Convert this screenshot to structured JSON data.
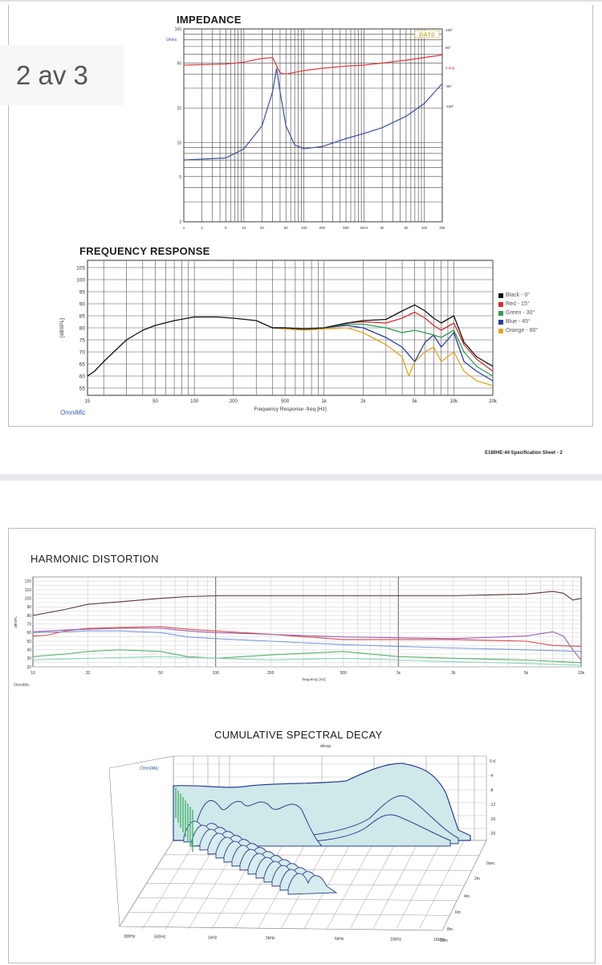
{
  "pager": {
    "label": "2 av 3"
  },
  "footer": {
    "spec": "E180HE-44 Specification Sheet - 2"
  },
  "impedance": {
    "title": "IMPEDANCE",
    "y_unit": "Ohms",
    "y_ticks": [
      "100",
      "50",
      "20",
      "10",
      "5",
      "2"
    ],
    "phase_ticks": [
      "180°",
      "90°",
      "0 deg",
      "-90°",
      "-180°"
    ],
    "x_ticks": [
      "1",
      "2",
      "5",
      "10",
      "20",
      "50",
      "100",
      "200",
      "500",
      "1kHz",
      "2k",
      "5k",
      "10k",
      "20k"
    ],
    "logo": "DATS"
  },
  "freq_response": {
    "title": "FREQUENCY RESPONSE",
    "ylabel": "[dBSPL]",
    "xlabel": "Frequency Response -freq [Hz]",
    "y_ticks": [
      "105",
      "100",
      "95",
      "90",
      "85",
      "80",
      "75",
      "70",
      "65",
      "60",
      "55"
    ],
    "x_ticks": [
      "15",
      "50",
      "100",
      "200",
      "500",
      "1k",
      "2k",
      "5k",
      "10k",
      "20k"
    ],
    "brand": "OmniMic",
    "legend": [
      {
        "label": "Black - 0°",
        "color": "#111111"
      },
      {
        "label": "Red - 15°",
        "color": "#d32f2f"
      },
      {
        "label": "Green - 30°",
        "color": "#2e9d4f"
      },
      {
        "label": "Blue - 45°",
        "color": "#283f9a"
      },
      {
        "label": "Orange - 60°",
        "color": "#e6a51e"
      }
    ]
  },
  "harmonic": {
    "title": "HARMONIC DISTORTION",
    "ylabel": "dBSPL",
    "xlabel": "frequency [Hz]",
    "y_ticks": [
      "120",
      "110",
      "100",
      "90",
      "80",
      "70",
      "60",
      "50",
      "40",
      "30",
      "20"
    ],
    "x_ticks": [
      "10",
      "20",
      "50",
      "100",
      "200",
      "500",
      "1k",
      "2k",
      "5k",
      "10k"
    ],
    "brand": "OmniMic"
  },
  "csd": {
    "title": "CUMULATIVE SPECTRAL DECAY",
    "subtitle": "decay",
    "brand": "OmniMic",
    "z_ticks": [
      "0 d",
      "-4",
      "-8",
      "-12",
      "-16",
      "-20"
    ],
    "t_ticks": [
      "0sec",
      "2m",
      "4m",
      "6m",
      "8m",
      "10m"
    ],
    "x_ticks": [
      "300Hz",
      "500Hz",
      "1kHz",
      "2kHz",
      "5kHz",
      "10kHz",
      "15kHz"
    ]
  },
  "chart_data": [
    {
      "type": "line",
      "title": "IMPEDANCE",
      "ylabel": "Ohms",
      "yscale": "log",
      "xscale": "log",
      "ylim": [
        2,
        100
      ],
      "xlim": [
        1,
        20000
      ],
      "series": [
        {
          "color": "#3a4fa6",
          "x": [
            1,
            5,
            10,
            20,
            30,
            35,
            40,
            50,
            70,
            100,
            200,
            500,
            1000,
            2000,
            5000,
            10000,
            20000
          ],
          "y": [
            7,
            7.3,
            8.8,
            14,
            28,
            45,
            28,
            14,
            9.5,
            8.8,
            9.2,
            10.8,
            12,
            13.5,
            17,
            22,
            33
          ]
        },
        {
          "color": "#d93a3a",
          "x": [
            1,
            5,
            10,
            20,
            30,
            40,
            50,
            100,
            200,
            500,
            1000,
            2000,
            5000,
            10000,
            20000
          ],
          "y": [
            48,
            49,
            51,
            55,
            56,
            41,
            40,
            43,
            45,
            47,
            48,
            50,
            53,
            56,
            59
          ]
        }
      ]
    },
    {
      "type": "line",
      "title": "FREQUENCY RESPONSE",
      "xlabel": "Frequency Response -freq [Hz]",
      "ylabel": "[dBSPL]",
      "xscale": "log",
      "xlim": [
        15,
        20000
      ],
      "ylim": [
        52,
        108
      ],
      "series": [
        {
          "name": "Black - 0°",
          "color": "#111111",
          "x": [
            15,
            17,
            20,
            25,
            30,
            40,
            50,
            70,
            100,
            150,
            200,
            300,
            400,
            500,
            700,
            1000,
            1500,
            2000,
            3000,
            4000,
            5000,
            6000,
            7000,
            8000,
            10000,
            12000,
            15000,
            20000
          ],
          "y": [
            60,
            62,
            66,
            71,
            75,
            79,
            81,
            83,
            84.5,
            84.5,
            84,
            83,
            80,
            80,
            79.5,
            80,
            82,
            83,
            83.5,
            87,
            89.5,
            87,
            84,
            82,
            85,
            74,
            68,
            64
          ]
        },
        {
          "name": "Red - 15°",
          "color": "#d32f2f",
          "x": [
            400,
            500,
            700,
            1000,
            1500,
            2000,
            3000,
            4000,
            5000,
            6000,
            7000,
            8000,
            10000,
            12000,
            15000,
            20000
          ],
          "y": [
            80,
            80,
            79.5,
            80,
            82,
            82.5,
            82,
            84,
            86.5,
            84,
            81,
            79,
            82,
            73,
            67,
            62
          ]
        },
        {
          "name": "Green - 30°",
          "color": "#2e9d4f",
          "x": [
            400,
            500,
            700,
            1000,
            1500,
            2000,
            3000,
            4000,
            5000,
            6000,
            7000,
            8000,
            10000,
            12000,
            15000,
            20000
          ],
          "y": [
            80,
            80,
            79.5,
            80,
            81.5,
            81.5,
            80,
            78,
            79,
            78,
            77,
            76,
            79,
            70,
            64,
            60
          ]
        },
        {
          "name": "Blue - 45°",
          "color": "#283f9a",
          "x": [
            400,
            500,
            700,
            1000,
            1500,
            2000,
            3000,
            4000,
            5000,
            6000,
            7000,
            8000,
            10000,
            12000,
            15000,
            20000
          ],
          "y": [
            80,
            80,
            79.5,
            80,
            81,
            80,
            76,
            72,
            66,
            74,
            77,
            72,
            78,
            66,
            62,
            58
          ]
        },
        {
          "name": "Orange - 60°",
          "color": "#e6a51e",
          "x": [
            400,
            500,
            700,
            1000,
            1500,
            2000,
            3000,
            4000,
            4500,
            5000,
            6000,
            7000,
            8000,
            10000,
            12000,
            15000,
            20000
          ],
          "y": [
            80,
            79.5,
            79,
            79.5,
            80,
            78,
            73,
            68,
            60,
            66,
            70,
            72,
            66,
            70,
            62,
            58,
            56
          ]
        }
      ]
    },
    {
      "type": "line",
      "title": "HARMONIC DISTORTION",
      "xlabel": "frequency [Hz]",
      "ylabel": "dBSPL",
      "xscale": "log",
      "xlim": [
        10,
        10000
      ],
      "ylim": [
        20,
        125
      ],
      "series": [
        {
          "color": "#5a3a34",
          "x": [
            10,
            15,
            20,
            30,
            50,
            70,
            100,
            200,
            500,
            1000,
            2000,
            5000,
            7000,
            8000,
            9000,
            10000
          ],
          "y": [
            80,
            87,
            93,
            96,
            100,
            102,
            103,
            103,
            103,
            103,
            103,
            105,
            108,
            106,
            98,
            100
          ]
        },
        {
          "color": "#d84c4c",
          "x": [
            10,
            12,
            15,
            20,
            30,
            50,
            70,
            100,
            200,
            500,
            1000,
            2000,
            5000,
            7000,
            10000
          ],
          "y": [
            56,
            57,
            62,
            65,
            66,
            67,
            64,
            62,
            58,
            52,
            52,
            52,
            50,
            45,
            44
          ]
        },
        {
          "color": "#9a5fb0",
          "x": [
            10,
            15,
            20,
            30,
            50,
            70,
            100,
            200,
            500,
            1000,
            2000,
            5000,
            7000,
            8000,
            9000,
            10000
          ],
          "y": [
            61,
            63,
            64,
            65,
            65,
            62,
            60,
            58,
            55,
            54,
            53,
            56,
            61,
            56,
            40,
            28
          ]
        },
        {
          "color": "#7a9ad8",
          "x": [
            10,
            15,
            20,
            30,
            50,
            70,
            100,
            200,
            500,
            1000,
            2000,
            5000,
            10000
          ],
          "y": [
            60,
            61,
            62,
            62,
            60,
            55,
            53,
            50,
            46,
            44,
            42,
            40,
            38
          ]
        },
        {
          "color": "#56b06a",
          "x": [
            10,
            15,
            20,
            30,
            50,
            70,
            100,
            200,
            500,
            1000,
            2000,
            5000,
            10000
          ],
          "y": [
            32,
            35,
            38,
            40,
            38,
            32,
            30,
            34,
            38,
            32,
            30,
            28,
            25
          ]
        },
        {
          "color": "#8fd4c0",
          "x": [
            10,
            20,
            50,
            100,
            200,
            500,
            1000,
            2000,
            5000,
            10000
          ],
          "y": [
            28,
            30,
            32,
            30,
            28,
            30,
            28,
            26,
            24,
            22
          ]
        }
      ]
    },
    {
      "type": "area",
      "title": "CUMULATIVE SPECTRAL DECAY"
    }
  ]
}
